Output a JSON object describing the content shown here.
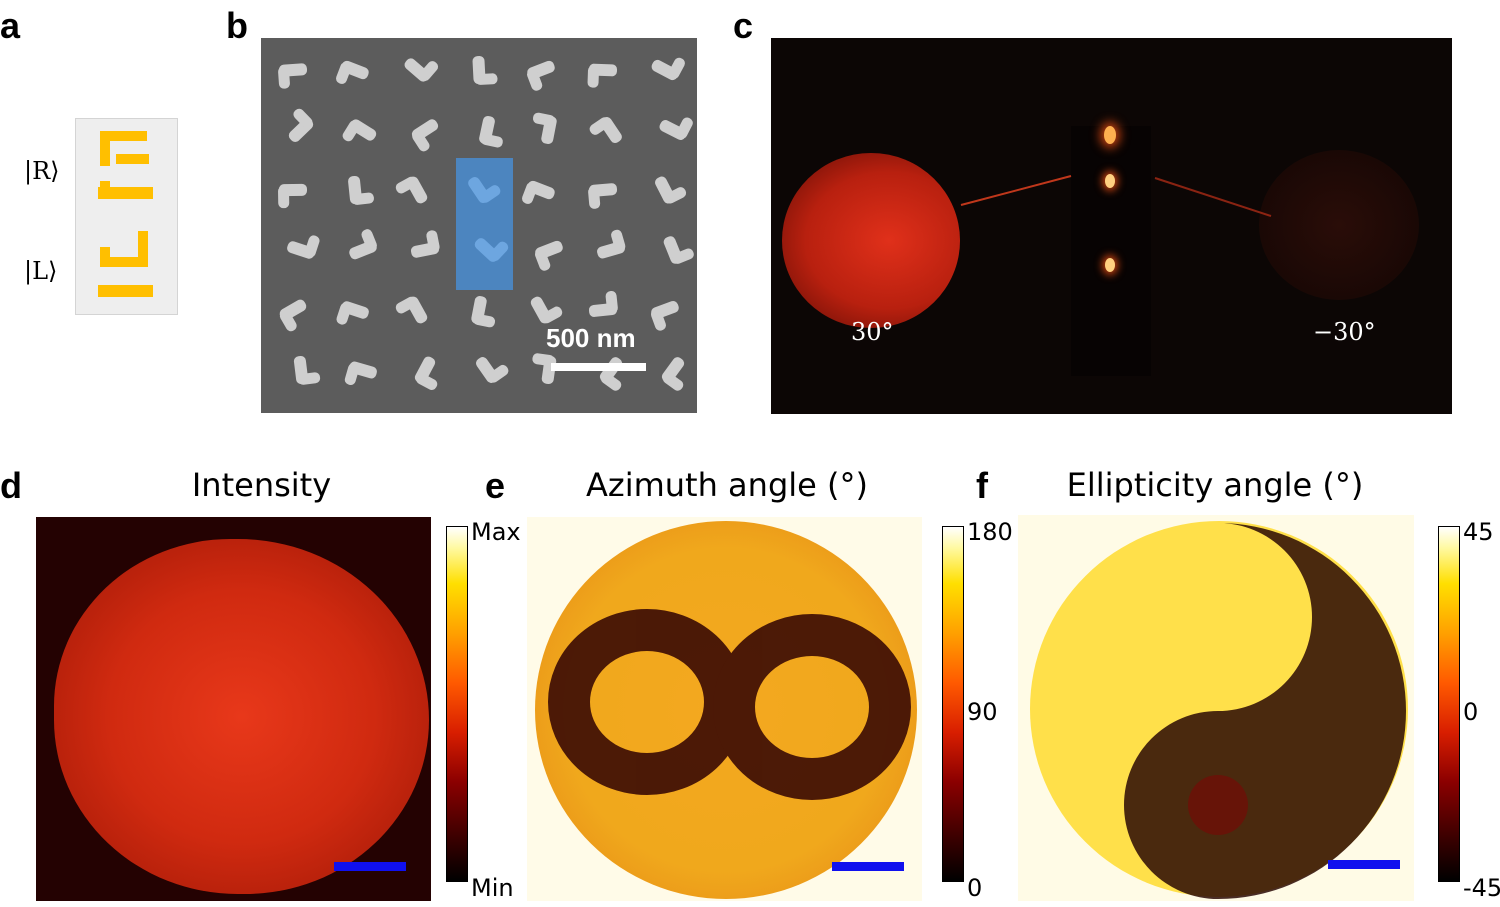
{
  "panels": {
    "a": {
      "letter": "a",
      "ket_r": "|R⟩",
      "ket_l": "|L⟩"
    },
    "b": {
      "letter": "b",
      "scale_label": "500 nm"
    },
    "c": {
      "letter": "c",
      "angle_left": "30°",
      "angle_right": "−30°"
    },
    "d": {
      "letter": "d",
      "title": "Intensity",
      "cbar_max": "Max",
      "cbar_min": "Min"
    },
    "e": {
      "letter": "e",
      "title": "Azimuth angle (°)",
      "cbar_top": "180",
      "cbar_mid": "90",
      "cbar_bottom": "0"
    },
    "f": {
      "letter": "f",
      "title": "Ellipticity angle (°)",
      "cbar_top": "45",
      "cbar_mid": "0",
      "cbar_bottom": "-45"
    }
  },
  "colors": {
    "metasurface_yellow": "#ffbf00",
    "scalebar_blue": "#1010ee",
    "highlight_blue": "#4a90d9"
  }
}
